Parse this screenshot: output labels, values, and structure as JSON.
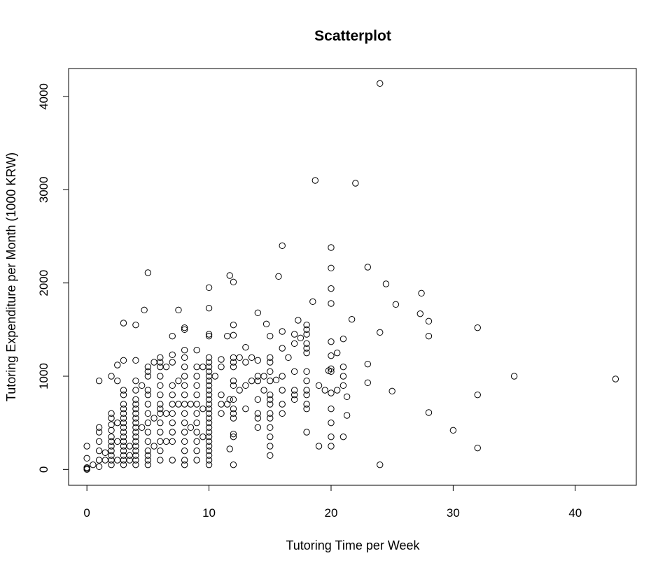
{
  "chart_data": {
    "type": "scatter",
    "title": "Scatterplot",
    "xlabel": "Tutoring Time per Week",
    "ylabel": "Tutoring Expenditure per Month (1000 KRW)",
    "xlim": [
      -1.5,
      45
    ],
    "ylim": [
      -170,
      4300
    ],
    "x_ticks": [
      0,
      10,
      20,
      30,
      40
    ],
    "y_ticks": [
      0,
      1000,
      2000,
      3000,
      4000
    ],
    "x_tick_labels": [
      "0",
      "10",
      "20",
      "30",
      "40"
    ],
    "y_tick_labels": [
      "0",
      "1000",
      "2000",
      "3000",
      "4000"
    ],
    "grid": false,
    "legend": "none",
    "marker": "open-circle",
    "color": "#000000",
    "points": [
      [
        0,
        0
      ],
      [
        0,
        10
      ],
      [
        0,
        20
      ],
      [
        0,
        120
      ],
      [
        0,
        250
      ],
      [
        0.5,
        50
      ],
      [
        1,
        100
      ],
      [
        1,
        200
      ],
      [
        1,
        300
      ],
      [
        1,
        400
      ],
      [
        1,
        450
      ],
      [
        1,
        950
      ],
      [
        1,
        30
      ],
      [
        1.5,
        100
      ],
      [
        1.5,
        180
      ],
      [
        2,
        50
      ],
      [
        2,
        100
      ],
      [
        2,
        150
      ],
      [
        2,
        200
      ],
      [
        2,
        250
      ],
      [
        2,
        300
      ],
      [
        2,
        350
      ],
      [
        2,
        420
      ],
      [
        2,
        480
      ],
      [
        2,
        550
      ],
      [
        2,
        600
      ],
      [
        2,
        1000
      ],
      [
        2.5,
        100
      ],
      [
        2.5,
        300
      ],
      [
        2.5,
        500
      ],
      [
        2.5,
        950
      ],
      [
        2.5,
        1120
      ],
      [
        3,
        50
      ],
      [
        3,
        100
      ],
      [
        3,
        150
      ],
      [
        3,
        200
      ],
      [
        3,
        250
      ],
      [
        3,
        300
      ],
      [
        3,
        350
      ],
      [
        3,
        400
      ],
      [
        3,
        450
      ],
      [
        3,
        500
      ],
      [
        3,
        550
      ],
      [
        3,
        600
      ],
      [
        3,
        650
      ],
      [
        3,
        700
      ],
      [
        3,
        800
      ],
      [
        3,
        850
      ],
      [
        3,
        1170
      ],
      [
        3,
        1570
      ],
      [
        3.5,
        100
      ],
      [
        3.5,
        150
      ],
      [
        3.5,
        250
      ],
      [
        4,
        50
      ],
      [
        4,
        100
      ],
      [
        4,
        150
      ],
      [
        4,
        200
      ],
      [
        4,
        250
      ],
      [
        4,
        300
      ],
      [
        4,
        350
      ],
      [
        4,
        400
      ],
      [
        4,
        450
      ],
      [
        4,
        500
      ],
      [
        4,
        550
      ],
      [
        4,
        600
      ],
      [
        4,
        650
      ],
      [
        4,
        700
      ],
      [
        4,
        750
      ],
      [
        4,
        850
      ],
      [
        4,
        950
      ],
      [
        4,
        1170
      ],
      [
        4,
        1550
      ],
      [
        4.5,
        450
      ],
      [
        4.5,
        900
      ],
      [
        4.7,
        1710
      ],
      [
        5,
        50
      ],
      [
        5,
        100
      ],
      [
        5,
        150
      ],
      [
        5,
        200
      ],
      [
        5,
        300
      ],
      [
        5,
        400
      ],
      [
        5,
        500
      ],
      [
        5,
        600
      ],
      [
        5,
        700
      ],
      [
        5,
        800
      ],
      [
        5,
        850
      ],
      [
        5,
        1000
      ],
      [
        5,
        1050
      ],
      [
        5,
        1100
      ],
      [
        5,
        2110
      ],
      [
        5.5,
        250
      ],
      [
        5.5,
        550
      ],
      [
        5.5,
        1150
      ],
      [
        6,
        100
      ],
      [
        6,
        200
      ],
      [
        6,
        300
      ],
      [
        6,
        400
      ],
      [
        6,
        500
      ],
      [
        6,
        600
      ],
      [
        6,
        650
      ],
      [
        6,
        700
      ],
      [
        6,
        800
      ],
      [
        6,
        900
      ],
      [
        6,
        1000
      ],
      [
        6,
        1100
      ],
      [
        6,
        1150
      ],
      [
        6,
        1200
      ],
      [
        6.5,
        300
      ],
      [
        6.5,
        600
      ],
      [
        6.5,
        1100
      ],
      [
        7,
        100
      ],
      [
        7,
        300
      ],
      [
        7,
        400
      ],
      [
        7,
        500
      ],
      [
        7,
        600
      ],
      [
        7,
        700
      ],
      [
        7,
        800
      ],
      [
        7,
        900
      ],
      [
        7,
        1150
      ],
      [
        7,
        1230
      ],
      [
        7,
        1430
      ],
      [
        7.5,
        700
      ],
      [
        7.5,
        950
      ],
      [
        7.5,
        1710
      ],
      [
        8,
        50
      ],
      [
        8,
        100
      ],
      [
        8,
        200
      ],
      [
        8,
        300
      ],
      [
        8,
        400
      ],
      [
        8,
        500
      ],
      [
        8,
        600
      ],
      [
        8,
        700
      ],
      [
        8,
        800
      ],
      [
        8,
        900
      ],
      [
        8,
        1000
      ],
      [
        8,
        1100
      ],
      [
        8,
        1200
      ],
      [
        8,
        1280
      ],
      [
        8,
        1500
      ],
      [
        8,
        1520
      ],
      [
        8.5,
        450
      ],
      [
        8.5,
        700
      ],
      [
        9,
        100
      ],
      [
        9,
        200
      ],
      [
        9,
        300
      ],
      [
        9,
        400
      ],
      [
        9,
        500
      ],
      [
        9,
        600
      ],
      [
        9,
        700
      ],
      [
        9,
        800
      ],
      [
        9,
        900
      ],
      [
        9,
        1000
      ],
      [
        9,
        1100
      ],
      [
        9,
        1280
      ],
      [
        9.5,
        350
      ],
      [
        9.5,
        650
      ],
      [
        9.5,
        1100
      ],
      [
        10,
        50
      ],
      [
        10,
        100
      ],
      [
        10,
        150
      ],
      [
        10,
        200
      ],
      [
        10,
        250
      ],
      [
        10,
        300
      ],
      [
        10,
        350
      ],
      [
        10,
        400
      ],
      [
        10,
        450
      ],
      [
        10,
        500
      ],
      [
        10,
        550
      ],
      [
        10,
        600
      ],
      [
        10,
        650
      ],
      [
        10,
        700
      ],
      [
        10,
        750
      ],
      [
        10,
        800
      ],
      [
        10,
        850
      ],
      [
        10,
        900
      ],
      [
        10,
        950
      ],
      [
        10,
        1000
      ],
      [
        10,
        1050
      ],
      [
        10,
        1100
      ],
      [
        10,
        1150
      ],
      [
        10,
        1200
      ],
      [
        10,
        1430
      ],
      [
        10,
        1450
      ],
      [
        10,
        1730
      ],
      [
        10,
        1950
      ],
      [
        10.5,
        1000
      ],
      [
        11,
        600
      ],
      [
        11,
        700
      ],
      [
        11,
        800
      ],
      [
        11,
        1100
      ],
      [
        11,
        1180
      ],
      [
        11.5,
        700
      ],
      [
        11.5,
        1430
      ],
      [
        11.7,
        220
      ],
      [
        11.7,
        750
      ],
      [
        11.7,
        2080
      ],
      [
        12,
        50
      ],
      [
        12,
        350
      ],
      [
        12,
        380
      ],
      [
        12,
        550
      ],
      [
        12,
        600
      ],
      [
        12,
        650
      ],
      [
        12,
        750
      ],
      [
        12,
        900
      ],
      [
        12,
        950
      ],
      [
        12,
        1100
      ],
      [
        12,
        1150
      ],
      [
        12,
        1200
      ],
      [
        12,
        1440
      ],
      [
        12,
        1550
      ],
      [
        12,
        2010
      ],
      [
        12.5,
        850
      ],
      [
        12.5,
        1200
      ],
      [
        13,
        650
      ],
      [
        13,
        900
      ],
      [
        13,
        1150
      ],
      [
        13,
        1310
      ],
      [
        13.5,
        950
      ],
      [
        13.5,
        1200
      ],
      [
        14,
        450
      ],
      [
        14,
        550
      ],
      [
        14,
        600
      ],
      [
        14,
        750
      ],
      [
        14,
        950
      ],
      [
        14,
        1000
      ],
      [
        14,
        1170
      ],
      [
        14,
        1680
      ],
      [
        14.5,
        850
      ],
      [
        14.5,
        1000
      ],
      [
        14.7,
        1560
      ],
      [
        15,
        150
      ],
      [
        15,
        250
      ],
      [
        15,
        350
      ],
      [
        15,
        450
      ],
      [
        15,
        550
      ],
      [
        15,
        600
      ],
      [
        15,
        700
      ],
      [
        15,
        750
      ],
      [
        15,
        800
      ],
      [
        15,
        950
      ],
      [
        15,
        1050
      ],
      [
        15,
        1150
      ],
      [
        15,
        1200
      ],
      [
        15,
        1430
      ],
      [
        15.5,
        960
      ],
      [
        15.7,
        2070
      ],
      [
        16,
        600
      ],
      [
        16,
        700
      ],
      [
        16,
        850
      ],
      [
        16,
        1000
      ],
      [
        16,
        1300
      ],
      [
        16,
        1480
      ],
      [
        16,
        2400
      ],
      [
        16.5,
        1200
      ],
      [
        17,
        750
      ],
      [
        17,
        800
      ],
      [
        17,
        850
      ],
      [
        17,
        1050
      ],
      [
        17,
        1350
      ],
      [
        17,
        1450
      ],
      [
        17.3,
        1600
      ],
      [
        17.5,
        1410
      ],
      [
        18,
        400
      ],
      [
        18,
        650
      ],
      [
        18,
        700
      ],
      [
        18,
        800
      ],
      [
        18,
        850
      ],
      [
        18,
        950
      ],
      [
        18,
        1050
      ],
      [
        18,
        1250
      ],
      [
        18,
        1300
      ],
      [
        18,
        1350
      ],
      [
        18,
        1450
      ],
      [
        18,
        1500
      ],
      [
        18,
        1550
      ],
      [
        18.5,
        1800
      ],
      [
        18.7,
        3100
      ],
      [
        19,
        250
      ],
      [
        19,
        900
      ],
      [
        19.5,
        850
      ],
      [
        19.8,
        1060
      ],
      [
        20,
        250
      ],
      [
        20,
        350
      ],
      [
        20,
        500
      ],
      [
        20,
        650
      ],
      [
        20,
        820
      ],
      [
        20,
        1050
      ],
      [
        20,
        1080
      ],
      [
        20,
        1220
      ],
      [
        20,
        1370
      ],
      [
        20,
        1780
      ],
      [
        20,
        1940
      ],
      [
        20,
        2160
      ],
      [
        20,
        2380
      ],
      [
        20.5,
        850
      ],
      [
        20.5,
        1250
      ],
      [
        21,
        350
      ],
      [
        21,
        900
      ],
      [
        21,
        1000
      ],
      [
        21,
        1100
      ],
      [
        21,
        1400
      ],
      [
        21.3,
        580
      ],
      [
        21.3,
        780
      ],
      [
        21.7,
        1610
      ],
      [
        22,
        3070
      ],
      [
        23,
        930
      ],
      [
        23,
        1130
      ],
      [
        23,
        2170
      ],
      [
        24,
        50
      ],
      [
        24,
        1470
      ],
      [
        24,
        4140
      ],
      [
        24.5,
        1990
      ],
      [
        25,
        840
      ],
      [
        25.3,
        1770
      ],
      [
        27.3,
        1670
      ],
      [
        27.4,
        1890
      ],
      [
        28,
        610
      ],
      [
        28,
        1430
      ],
      [
        28,
        1590
      ],
      [
        30,
        420
      ],
      [
        32,
        230
      ],
      [
        32,
        800
      ],
      [
        32,
        1520
      ],
      [
        35,
        1000
      ],
      [
        43.3,
        970
      ]
    ]
  }
}
